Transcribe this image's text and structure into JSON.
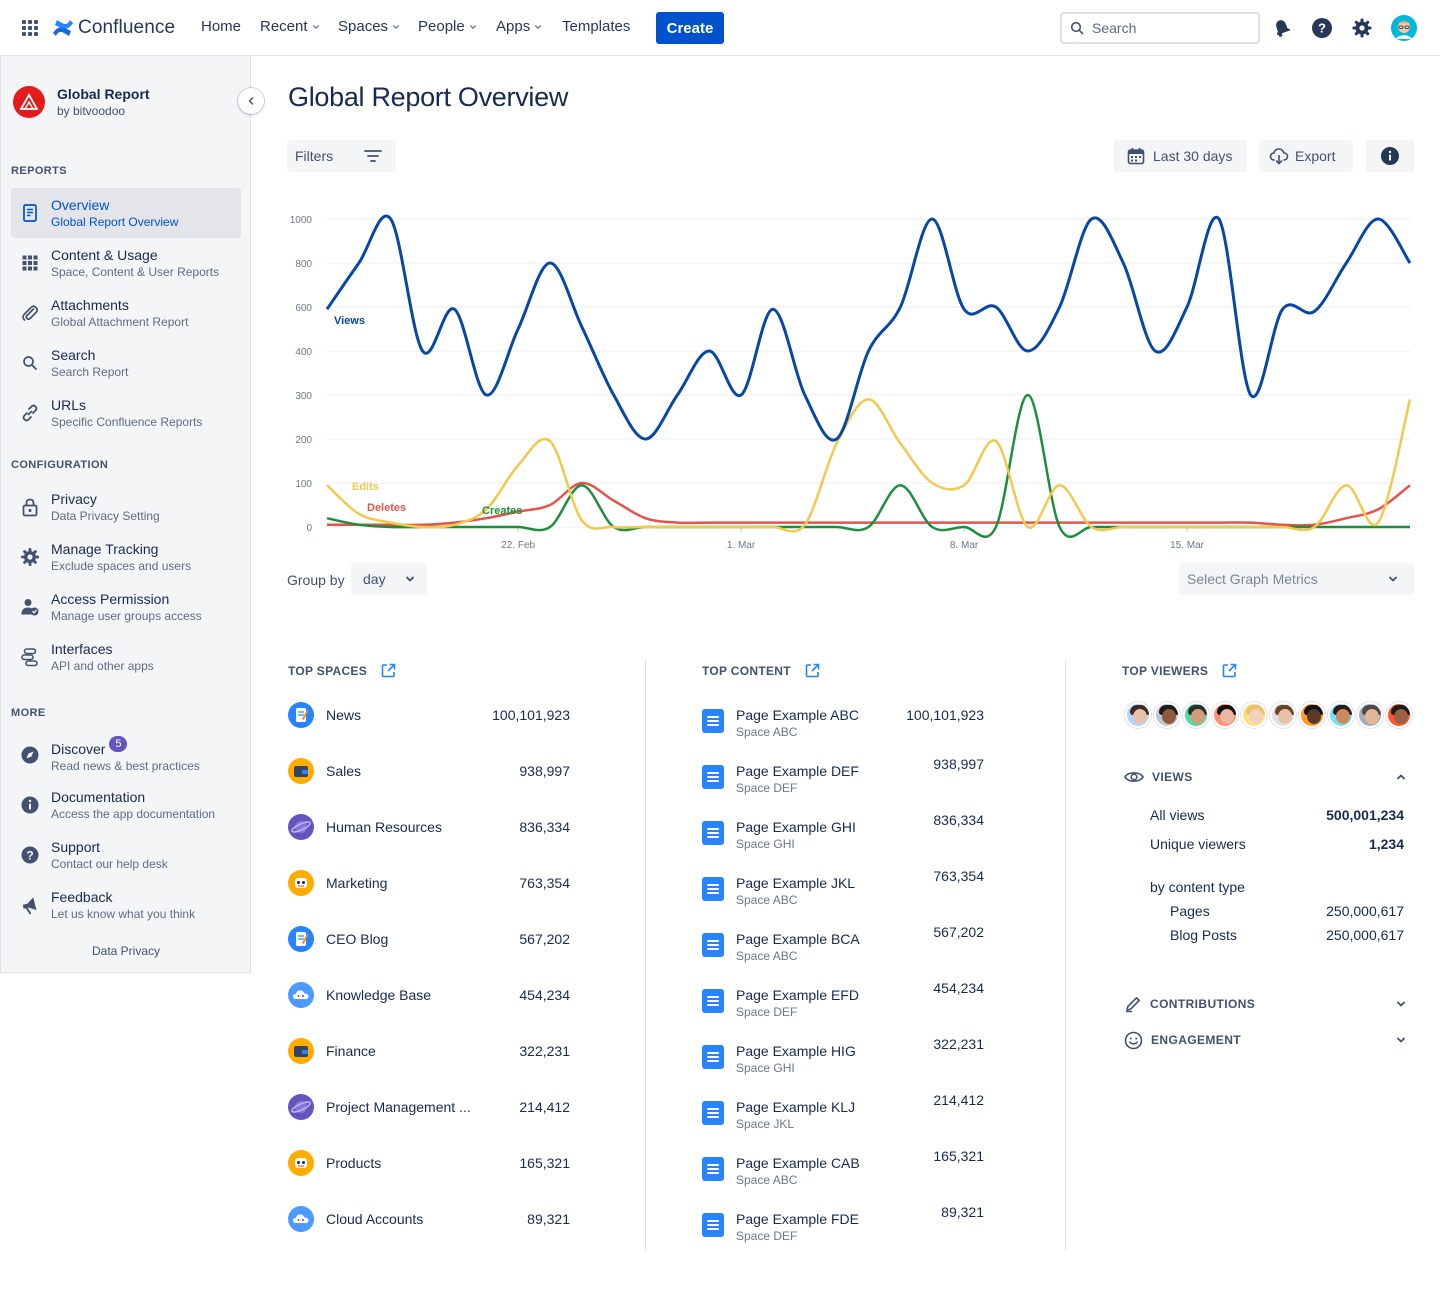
{
  "topnav": {
    "logo_text": "Confluence",
    "items": [
      {
        "label": "Home",
        "dropdown": false
      },
      {
        "label": "Recent",
        "dropdown": true
      },
      {
        "label": "Spaces",
        "dropdown": true
      },
      {
        "label": "People",
        "dropdown": true
      },
      {
        "label": "Apps",
        "dropdown": true
      },
      {
        "label": "Templates",
        "dropdown": false
      }
    ],
    "create_label": "Create",
    "search_placeholder": "Search"
  },
  "sidebar": {
    "app_title": "Global Report",
    "app_subtitle": "by bitvoodoo",
    "sections": {
      "reports": "REPORTS",
      "configuration": "CONFIGURATION",
      "more": "MORE"
    },
    "items": [
      {
        "title": "Overview",
        "subtitle": "Global Report Overview",
        "icon": "document-icon",
        "active": true
      },
      {
        "title": "Content & Usage",
        "subtitle": "Space, Content & User Reports",
        "icon": "grid-icon"
      },
      {
        "title": "Attachments",
        "subtitle": "Global Attachment Report",
        "icon": "paperclip-icon"
      },
      {
        "title": "Search",
        "subtitle": "Search Report",
        "icon": "search-icon"
      },
      {
        "title": "URLs",
        "subtitle": "Specific Confluence Reports",
        "icon": "link-icon"
      },
      {
        "title": "Privacy",
        "subtitle": "Data Privacy Setting",
        "icon": "lock-icon"
      },
      {
        "title": "Manage Tracking",
        "subtitle": "Exclude spaces and users",
        "icon": "gear-icon"
      },
      {
        "title": "Access Permission",
        "subtitle": "Manage user groups access",
        "icon": "user-check-icon"
      },
      {
        "title": "Interfaces",
        "subtitle": "API and other apps",
        "icon": "interfaces-icon"
      },
      {
        "title": "Discover",
        "subtitle": "Read news & best practices",
        "icon": "compass-icon",
        "badge": "5"
      },
      {
        "title": "Documentation",
        "subtitle": "Access the app documentation",
        "icon": "info-icon"
      },
      {
        "title": "Support",
        "subtitle": "Contact our help desk",
        "icon": "question-icon"
      },
      {
        "title": "Feedback",
        "subtitle": "Let us know what you think",
        "icon": "megaphone-icon"
      }
    ],
    "footer_link": "Data Privacy"
  },
  "main": {
    "title": "Global Report Overview",
    "filters_label": "Filters",
    "date_range_label": "Last 30 days",
    "export_label": "Export",
    "group_by_label": "Group by",
    "group_by_value": "day",
    "graph_metrics_placeholder": "Select Graph Metrics"
  },
  "chart_data": {
    "type": "line",
    "y_ticks": [
      "0",
      "100",
      "200",
      "300",
      "400",
      "600",
      "800",
      "1000"
    ],
    "x_ticks": [
      {
        "label": "22. Feb",
        "index": 6
      },
      {
        "label": "1. Mar",
        "index": 13
      },
      {
        "label": "8. Mar",
        "index": 20
      },
      {
        "label": "15. Mar",
        "index": 27
      }
    ],
    "y_scale": "tick-spaced",
    "colors": {
      "Views": "#0747a6",
      "Edits": "#f2c94c",
      "Deletes": "#e5534b",
      "Creates": "#1e8e3e"
    },
    "series": [
      {
        "name": "Views",
        "values": [
          590,
          800,
          1000,
          400,
          590,
          300,
          500,
          800,
          510,
          300,
          200,
          300,
          400,
          300,
          590,
          300,
          200,
          400,
          600,
          1000,
          590,
          600,
          400,
          600,
          1000,
          800,
          400,
          600,
          1000,
          300,
          590,
          580,
          800,
          1000,
          800
        ]
      },
      {
        "name": "Edits",
        "values": [
          95,
          30,
          10,
          0,
          5,
          40,
          140,
          195,
          15,
          0,
          0,
          0,
          0,
          0,
          0,
          5,
          190,
          290,
          190,
          100,
          95,
          195,
          0,
          95,
          0,
          0,
          0,
          0,
          0,
          0,
          0,
          0,
          95,
          10,
          290
        ]
      },
      {
        "name": "Deletes",
        "values": [
          5,
          5,
          5,
          5,
          10,
          20,
          35,
          50,
          100,
          60,
          20,
          10,
          10,
          10,
          10,
          10,
          10,
          10,
          10,
          10,
          10,
          10,
          10,
          10,
          10,
          10,
          10,
          10,
          10,
          10,
          5,
          5,
          20,
          40,
          95
        ]
      },
      {
        "name": "Creates",
        "values": [
          20,
          5,
          0,
          0,
          0,
          0,
          0,
          0,
          95,
          0,
          0,
          0,
          0,
          0,
          0,
          0,
          0,
          0,
          95,
          0,
          0,
          0,
          300,
          0,
          0,
          0,
          0,
          0,
          0,
          0,
          0,
          0,
          0,
          0,
          0
        ]
      }
    ],
    "annotations": [
      {
        "text": "Views",
        "series": "Views"
      },
      {
        "text": "Edits",
        "series": "Edits"
      },
      {
        "text": "Deletes",
        "series": "Deletes"
      },
      {
        "text": "Creates",
        "series": "Creates"
      }
    ]
  },
  "top_spaces": {
    "heading": "TOP SPACES",
    "rows": [
      {
        "name": "News",
        "value": "100,101,923",
        "color": "#2684ff",
        "icon": "notepad-icon"
      },
      {
        "name": "Sales",
        "value": "938,997",
        "color": "#ffab00",
        "icon": "wallet-icon"
      },
      {
        "name": "Human Resources",
        "value": "836,334",
        "color": "#6554c0",
        "icon": "planet-icon"
      },
      {
        "name": "Marketing",
        "value": "763,354",
        "color": "#ffab00",
        "icon": "robot-icon"
      },
      {
        "name": "CEO Blog",
        "value": "567,202",
        "color": "#2684ff",
        "icon": "notepad-icon"
      },
      {
        "name": "Knowledge Base",
        "value": "454,234",
        "color": "#4c9aff",
        "icon": "cloud-icon"
      },
      {
        "name": "Finance",
        "value": "322,231",
        "color": "#ffab00",
        "icon": "wallet-icon"
      },
      {
        "name": "Project Management ...",
        "value": "214,412",
        "color": "#6554c0",
        "icon": "planet-icon"
      },
      {
        "name": "Products",
        "value": "165,321",
        "color": "#ffab00",
        "icon": "robot-icon"
      },
      {
        "name": "Cloud Accounts",
        "value": "89,321",
        "color": "#4c9aff",
        "icon": "cloud-icon"
      }
    ]
  },
  "top_content": {
    "heading": "TOP CONTENT",
    "rows": [
      {
        "title": "Page Example ABC",
        "space": "Space ABC",
        "value": "100,101,923"
      },
      {
        "title": "Page Example DEF",
        "space": "Space DEF",
        "value": "938,997"
      },
      {
        "title": "Page Example GHI",
        "space": "Space GHI",
        "value": "836,334"
      },
      {
        "title": "Page Example JKL",
        "space": "Space ABC",
        "value": "763,354"
      },
      {
        "title": "Page Example BCA",
        "space": "Space ABC",
        "value": "567,202"
      },
      {
        "title": "Page Example EFD",
        "space": "Space DEF",
        "value": "454,234"
      },
      {
        "title": "Page Example HIG",
        "space": "Space GHI",
        "value": "322,231"
      },
      {
        "title": "Page Example KLJ",
        "space": "Space JKL",
        "value": "214,412"
      },
      {
        "title": "Page Example CAB",
        "space": "Space ABC",
        "value": "165,321"
      },
      {
        "title": "Page Example FDE",
        "space": "Space DEF",
        "value": "89,321"
      }
    ]
  },
  "top_viewers": {
    "heading": "TOP VIEWERS",
    "avatars": [
      {
        "skin": "#e8c2a8",
        "hair": "#3b2a20",
        "bg": "#b3d4ff"
      },
      {
        "skin": "#8d5a3b",
        "hair": "#1b1b1b",
        "bg": "#c1c7d0"
      },
      {
        "skin": "#d39c7a",
        "hair": "#2d2d2d",
        "bg": "#57d9a3"
      },
      {
        "skin": "#e9b8a0",
        "hair": "#111111",
        "bg": "#ff8f73"
      },
      {
        "skin": "#f1d2b8",
        "hair": "#e8c173",
        "bg": "#ffe380"
      },
      {
        "skin": "#e8c2a8",
        "hair": "#6b4226",
        "bg": "#dfe1e6"
      },
      {
        "skin": "#5a3a28",
        "hair": "#111111",
        "bg": "#ff991f"
      },
      {
        "skin": "#c98a62",
        "hair": "#2b1b12",
        "bg": "#79e2f2"
      },
      {
        "skin": "#e2b696",
        "hair": "#4a4a4a",
        "bg": "#a5adba"
      },
      {
        "skin": "#9b6244",
        "hair": "#1b1b1b",
        "bg": "#ff5630"
      }
    ],
    "views": {
      "label": "VIEWS",
      "all_views_label": "All views",
      "all_views_value": "500,001,234",
      "unique_label": "Unique viewers",
      "unique_value": "1,234",
      "by_type_label": "by content type",
      "pages_label": "Pages",
      "pages_value": "250,000,617",
      "blog_label": "Blog Posts",
      "blog_value": "250,000,617"
    },
    "contributions_label": "CONTRIBUTIONS",
    "engagement_label": "ENGAGEMENT"
  }
}
